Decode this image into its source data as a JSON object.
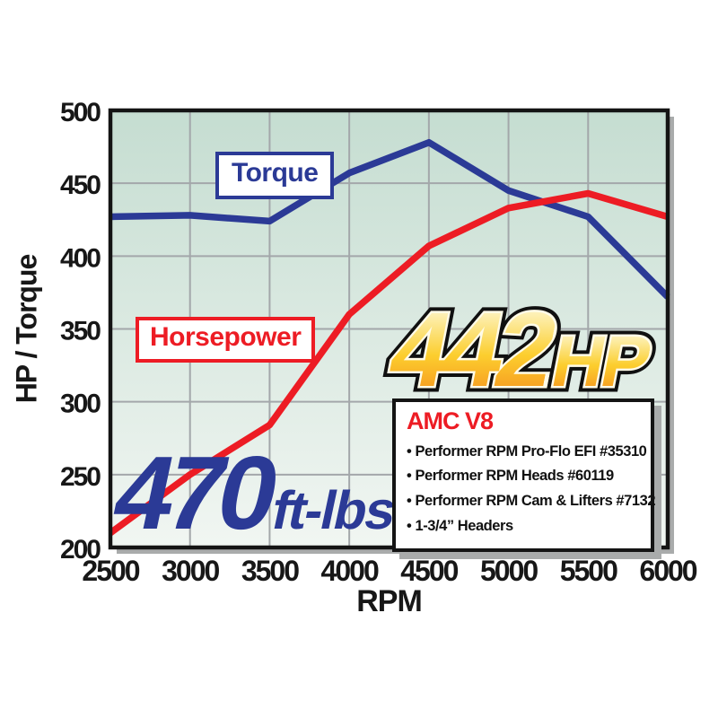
{
  "chart_data": {
    "type": "line",
    "title": "",
    "xlabel": "RPM",
    "ylabel": "HP / Torque",
    "x": [
      2500,
      3000,
      3500,
      4000,
      4500,
      5000,
      5500,
      6000
    ],
    "series": [
      {
        "name": "Torque",
        "color": "#2b3a96",
        "values": [
          427,
          428,
          424,
          457,
          478,
          445,
          427,
          372
        ]
      },
      {
        "name": "Horsepower",
        "color": "#ed1c24",
        "values": [
          210,
          250,
          284,
          360,
          407,
          433,
          443,
          427
        ]
      }
    ],
    "xlim": [
      2500,
      6000
    ],
    "ylim": [
      200,
      500
    ],
    "x_ticks": [
      2500,
      3000,
      3500,
      4000,
      4500,
      5000,
      5500,
      6000
    ],
    "y_ticks": [
      200,
      250,
      300,
      350,
      400,
      450,
      500
    ],
    "grid": true,
    "legend_position": "inline label boxes on plot"
  },
  "headline": {
    "hp_value": "442",
    "hp_unit": "HP",
    "torque_value": "470",
    "torque_unit": "ft-lbs"
  },
  "info_box": {
    "title": "AMC V8",
    "items": [
      "Performer RPM Pro-Flo EFI #35310",
      "Performer RPM Heads #60119",
      "Performer RPM Cam & Lifters #7132",
      "1-3/4” Headers"
    ]
  },
  "colors": {
    "navy": "#2b3a96",
    "red": "#ed1c24",
    "ink": "#171717",
    "border": "#141414",
    "grid": "#a3a7aa",
    "bgtop": "#c5ddd1",
    "bgbottom": "#f1f6f2",
    "shadow": "#a9abab",
    "goldtop": "#fdf7cf",
    "goldmid": "#fcce2e",
    "goldbottom": "#f6921e",
    "cream": "#fffbe8"
  }
}
